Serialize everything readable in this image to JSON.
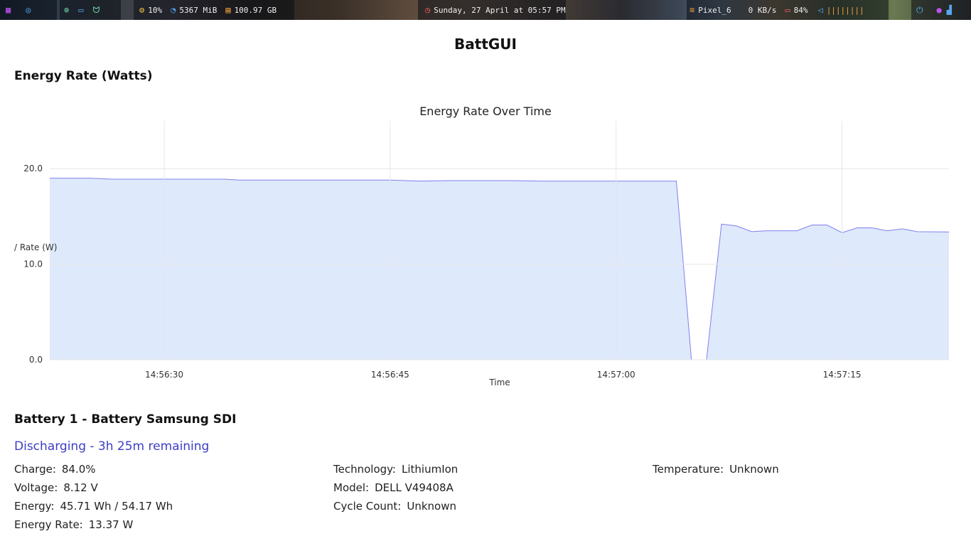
{
  "topbar": {
    "cpu": "10%",
    "memory": "5367 MiB",
    "disk": "100.97 GB",
    "datetime": "Sunday, 27 April at 05:57 PM",
    "wifi": "Pixel_6",
    "network": "0 KB/s",
    "battery": "84%",
    "volume_level": "||||||||",
    "icons": {
      "workspace": "grid-icon",
      "browser": "browser-icon",
      "files": "folder-icon",
      "app": "cat-icon",
      "cpu": "cpu-icon",
      "memory": "memory-icon",
      "disk": "disk-icon",
      "clock": "clock-icon",
      "wifi": "wifi-icon",
      "battery": "battery-icon",
      "volume": "speaker-icon",
      "power": "power-icon"
    }
  },
  "app": {
    "title": "BattGUI",
    "energy_section_title": "Energy Rate (Watts)"
  },
  "chart_data": {
    "type": "area",
    "title": "Energy Rate Over Time",
    "xlabel": "Time",
    "ylabel": "Energy Rate (W)",
    "ylabel_visible": "/ Rate (W)",
    "ylim": [
      0,
      25
    ],
    "yticks": [
      "0.0",
      "10.0",
      "20.0"
    ],
    "xticks": [
      "14:56:30",
      "14:56:45",
      "14:57:00",
      "14:57:15"
    ],
    "xrange": [
      "14:56:22.4",
      "14:57:22.1"
    ],
    "grid": true,
    "color_line": "#8080ee",
    "color_fill": "#dce8fb",
    "x": [
      "14:56:22.4",
      "14:56:25",
      "14:56:26.5",
      "14:56:30",
      "14:56:34",
      "14:56:35",
      "14:56:40",
      "14:56:45",
      "14:56:47",
      "14:56:49",
      "14:56:53",
      "14:56:55",
      "14:57:00",
      "14:57:04",
      "14:57:05",
      "14:57:06",
      "14:57:07",
      "14:57:08",
      "14:57:09",
      "14:57:10",
      "14:57:12",
      "14:57:13",
      "14:57:14",
      "14:57:15",
      "14:57:16",
      "14:57:17",
      "14:57:18",
      "14:57:19",
      "14:57:20",
      "14:57:22.1"
    ],
    "y": [
      19.0,
      19.0,
      18.9,
      18.9,
      18.9,
      18.8,
      18.8,
      18.8,
      18.7,
      18.75,
      18.75,
      18.7,
      18.7,
      18.7,
      0.0,
      0.0,
      14.2,
      14.0,
      13.4,
      13.5,
      13.5,
      14.1,
      14.1,
      13.3,
      13.8,
      13.8,
      13.5,
      13.7,
      13.4,
      13.37
    ]
  },
  "battery": {
    "heading": "Battery 1 - Battery Samsung SDI",
    "status": "Discharging - 3h 25m remaining",
    "charge_label": "Charge:",
    "charge_value": "84.0%",
    "voltage_label": "Voltage:",
    "voltage_value": "8.12 V",
    "energy_label": "Energy:",
    "energy_value": "45.71 Wh / 54.17 Wh",
    "energy_rate_label": "Energy Rate:",
    "energy_rate_value": "13.37 W",
    "technology_label": "Technology:",
    "technology_value": "LithiumIon",
    "model_label": "Model:",
    "model_value": "DELL V49408A",
    "cycle_count_label": "Cycle Count:",
    "cycle_count_value": "Unknown",
    "temperature_label": "Temperature:",
    "temperature_value": "Unknown"
  }
}
